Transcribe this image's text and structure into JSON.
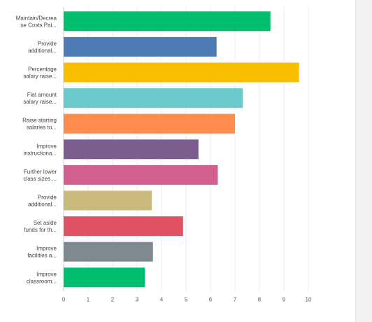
{
  "chart_data": {
    "type": "bar",
    "orientation": "horizontal",
    "title": "",
    "xlabel": "",
    "ylabel": "",
    "xlim": [
      0,
      10
    ],
    "xticks": [
      0,
      1,
      2,
      3,
      4,
      5,
      6,
      7,
      8,
      9,
      10
    ],
    "grid": true,
    "categories": [
      [
        "Maintain/Decrea",
        "se Costs Pai..."
      ],
      [
        "Provide",
        "additional..."
      ],
      [
        "Percentage",
        "salary raise..."
      ],
      [
        "Flat amount",
        "salary raise..."
      ],
      [
        "Raise starting",
        "salaries to..."
      ],
      [
        "Improve",
        "instructiona..."
      ],
      [
        "Further lower",
        "class sizes ..."
      ],
      [
        "Provide",
        "additional..."
      ],
      [
        "Set aside",
        "funds for th..."
      ],
      [
        "Improve",
        "facilities a..."
      ],
      [
        "Improve",
        "classroom..."
      ]
    ],
    "values": [
      8.45,
      6.25,
      9.62,
      7.32,
      7.0,
      5.51,
      6.3,
      3.6,
      4.88,
      3.65,
      3.32
    ],
    "colors": [
      "#00bf6f",
      "#507cb6",
      "#f9be00",
      "#6bc8cd",
      "#ff8b4f",
      "#7d5e90",
      "#d25f90",
      "#c9b97b",
      "#e05263",
      "#7f8a90",
      "#00bf6f"
    ]
  }
}
